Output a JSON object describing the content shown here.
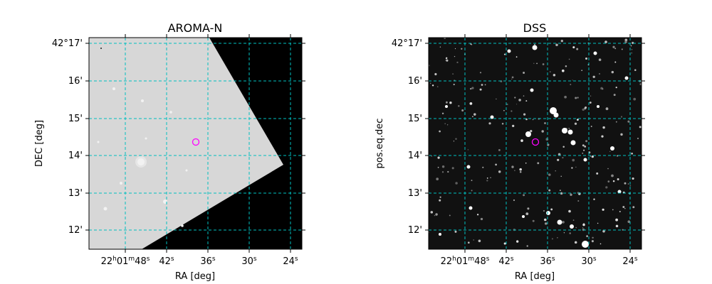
{
  "panels": [
    {
      "title": "AROMA-N",
      "xlabel": "RA [deg]",
      "ylabel": "DEC [deg]",
      "x_ticks": [
        {
          "h": "22",
          "hs": "h",
          "m": "01",
          "ms": "m",
          "s": "48",
          "ss": "s"
        },
        {
          "s": "42",
          "ss": "s"
        },
        {
          "s": "36",
          "ss": "s"
        },
        {
          "s": "30",
          "ss": "s"
        },
        {
          "s": "24",
          "ss": "s"
        }
      ],
      "y_ticks": [
        "42°17'",
        "16'",
        "15'",
        "14'",
        "13'",
        "12'"
      ],
      "image": "grey-survey-with-black-masked-region",
      "marker_color": "#ff00ff",
      "grid_color": "#00bfbf"
    },
    {
      "title": "DSS",
      "xlabel": "RA [deg]",
      "ylabel": "pos.eq.dec",
      "x_ticks": [
        {
          "h": "22",
          "hs": "h",
          "m": "01",
          "ms": "m",
          "s": "48",
          "ss": "s"
        },
        {
          "s": "42",
          "ss": "s"
        },
        {
          "s": "36",
          "ss": "s"
        },
        {
          "s": "30",
          "ss": "s"
        },
        {
          "s": "24",
          "ss": "s"
        }
      ],
      "y_ticks": [
        "42°17'",
        "16'",
        "15'",
        "14'",
        "13'",
        "12'"
      ],
      "image": "black-starfield",
      "marker_color": "#ff00ff",
      "grid_color": "#00bfbf"
    }
  ]
}
